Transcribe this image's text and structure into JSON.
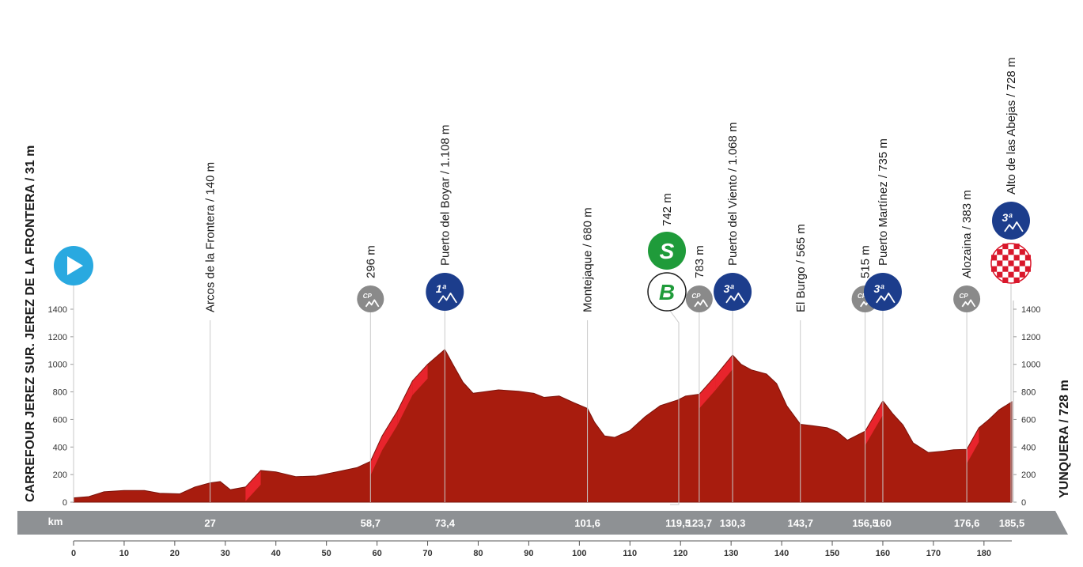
{
  "chart_data": {
    "type": "area",
    "start_label": "CARREFOUR JEREZ SUR. JEREZ DE LA FRONTERA / 31 m",
    "finish_label": "YUNQUERA / 728 m",
    "band_label": "km",
    "xlim": [
      0,
      185.5
    ],
    "ylim": [
      0,
      1500
    ],
    "x_ticks": [
      0,
      10,
      20,
      30,
      40,
      50,
      60,
      70,
      80,
      90,
      100,
      110,
      120,
      130,
      140,
      150,
      160,
      170,
      180
    ],
    "y_ticks": [
      0,
      200,
      400,
      600,
      800,
      1000,
      1200,
      1400
    ],
    "profile": {
      "km": [
        0,
        3,
        6,
        10,
        14,
        17,
        21,
        24,
        27,
        29,
        31,
        34,
        37,
        40,
        44,
        48,
        52,
        56,
        58.7,
        61,
        64,
        67,
        70,
        73.4,
        75,
        77,
        79,
        81,
        84,
        88,
        91,
        93,
        96,
        99,
        101.6,
        103,
        105,
        107,
        110,
        113,
        116,
        119.5,
        121,
        123.7,
        127,
        130.3,
        132,
        134,
        137,
        139,
        141,
        143.7,
        146,
        149,
        151,
        153,
        156.5,
        160,
        162,
        164,
        166,
        169,
        172,
        174,
        176.6,
        179,
        181,
        183,
        185.5
      ],
      "elevation": [
        31,
        40,
        75,
        85,
        85,
        65,
        60,
        110,
        140,
        150,
        90,
        110,
        230,
        220,
        185,
        190,
        220,
        250,
        296,
        480,
        660,
        880,
        1000,
        1108,
        1000,
        870,
        790,
        800,
        815,
        805,
        790,
        760,
        770,
        720,
        680,
        580,
        480,
        470,
        520,
        620,
        700,
        742,
        770,
        783,
        920,
        1068,
        1000,
        960,
        930,
        860,
        700,
        565,
        555,
        540,
        510,
        450,
        515,
        735,
        640,
        560,
        430,
        360,
        370,
        380,
        383,
        540,
        600,
        670,
        728
      ]
    },
    "markers": [
      {
        "km": 0,
        "label": "CARREFOUR JEREZ SUR. JEREZ DE LA FRONTERA / 31 m",
        "kind": "start",
        "icon": "start-play-icon"
      },
      {
        "km": 27,
        "label": "Arcos de la Frontera / 140 m",
        "kind": "town",
        "band": "27"
      },
      {
        "km": 58.7,
        "label": "296 m",
        "kind": "cp",
        "icon": "cp-icon",
        "band": "58,7"
      },
      {
        "km": 73.4,
        "label": "Puerto del Boyar / 1.108 m",
        "kind": "cat1",
        "icon": "cat1-climb-icon",
        "band": "73,4"
      },
      {
        "km": 101.6,
        "label": "Montejaque / 680 m",
        "kind": "town",
        "band": "101,6"
      },
      {
        "km": 119.5,
        "label": "742 m",
        "kind": "sprint-bonus",
        "icon": "sprint-icon",
        "band": "119,5"
      },
      {
        "km": 123.7,
        "label": "783 m",
        "kind": "cp",
        "icon": "cp-icon",
        "band": "123,7"
      },
      {
        "km": 130.3,
        "label": "Puerto del Viento / 1.068 m",
        "kind": "cat3",
        "icon": "cat3-climb-icon",
        "band": "130,3"
      },
      {
        "km": 143.7,
        "label": "El Burgo / 565 m",
        "kind": "town",
        "band": "143,7"
      },
      {
        "km": 156.5,
        "label": "515 m",
        "kind": "cp",
        "icon": "cp-icon",
        "band": "156,5"
      },
      {
        "km": 160,
        "label": "Puerto Martínez / 735 m",
        "kind": "cat3",
        "icon": "cat3-climb-icon",
        "band": "160"
      },
      {
        "km": 176.6,
        "label": "Alozaina / 383 m",
        "kind": "cp-town",
        "icon": "cp-icon",
        "band": "176,6"
      },
      {
        "km": 185.5,
        "label": "Alto de las Abejas / 728 m",
        "kind": "finish-cat3",
        "icon": "finish-flag-icon",
        "band": "185,5"
      }
    ],
    "badges": {
      "cat1": "1ª",
      "cat3": "3ª",
      "cp": "CP",
      "sprint": "S",
      "bonus": "B"
    },
    "colors": {
      "profile": "#a81c0e",
      "slope": "#e8242c",
      "band": "#8e9194",
      "cp": "#8a8a8a",
      "climb": "#1c3d8c",
      "sprint": "#1f9b3a",
      "start": "#29a9e0",
      "finish": "#d9172b"
    }
  }
}
